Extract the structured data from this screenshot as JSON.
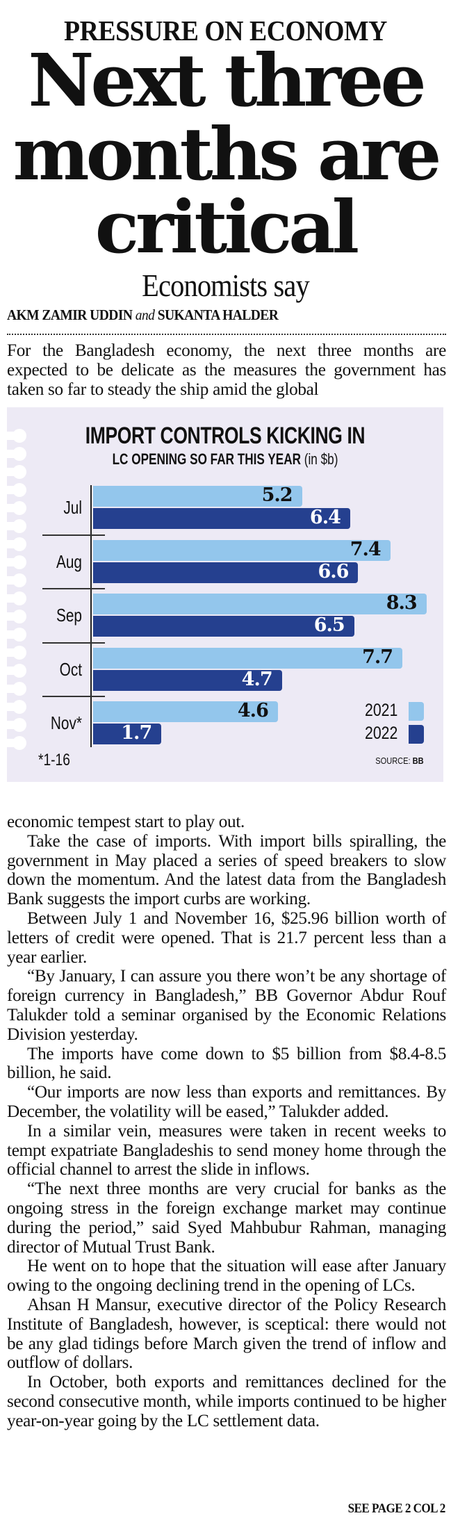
{
  "article": {
    "kicker": "PRESSURE ON ECONOMY",
    "headline_lines": [
      "Next three",
      "months are",
      "critical"
    ],
    "deck": "Economists say",
    "byline": {
      "author1": "AKM ZAMIR UDDIN",
      "conjunction": "and",
      "author2": "SUKANTA HALDER"
    },
    "intro": "For the Bangladesh economy, the next three months are expected to be delicate as the measures the government has taken so far to steady the ship amid the global",
    "body": [
      "economic tempest start to play out.",
      "Take the case of imports. With import bills spiralling, the government in May placed a series of speed breakers to slow down the momentum. And the latest data from the Bangladesh Bank suggests the import curbs are working.",
      "Between July 1 and November 16, $25.96 billion worth of letters of credit were opened. That is 21.7 percent less than a year earlier.",
      "“By January, I can assure you there won’t be any shortage of foreign currency in Bangladesh,” BB Governor Abdur Rouf Talukder told a seminar organised by the Economic Relations Division yesterday.",
      "The imports have come down to $5 billion from $8.4-8.5 billion, he said.",
      "“Our imports are now less than exports and remittances. By December, the volatility will be eased,” Talukder added.",
      "In a similar vein, measures were taken in recent weeks to tempt expatriate Bangladeshis to send money home through the official channel to arrest the slide in inflows.",
      "“The next three months are very crucial for banks as the ongoing stress in the foreign exchange market may continue during the period,” said Syed Mahbubur Rahman, managing director of Mutual Trust Bank.",
      "He went on to hope that the situation will ease after January owing to the ongoing declining trend in the opening of LCs.",
      "Ahsan H Mansur, executive director of the Policy Research Institute of Bangladesh, however, is sceptical: there would not be any glad tidings before March given the trend of inflow and outflow of dollars.",
      "In October, both exports and remittances declined for the second consecutive month, while imports continued to be higher year-on-year going by the LC settlement data."
    ],
    "jump_line": "SEE PAGE 2 COL 2"
  },
  "colors": {
    "series_2021": "#93c6ec",
    "series_2022": "#25408f",
    "chart_background": "#edeaf5"
  },
  "chart_data": {
    "type": "bar",
    "orientation": "horizontal",
    "title": "IMPORT CONTROLS KICKING IN",
    "subtitle_bold": "LC OPENING SO FAR THIS YEAR",
    "subtitle_unit": "(in $b)",
    "categories": [
      "Jul",
      "Aug",
      "Sep",
      "Oct",
      "Nov*"
    ],
    "series": [
      {
        "name": "2021",
        "values": [
          5.2,
          7.4,
          8.3,
          7.7,
          4.6
        ]
      },
      {
        "name": "2022",
        "values": [
          6.4,
          6.6,
          6.5,
          4.7,
          1.7
        ]
      }
    ],
    "value_labels": {
      "2021": [
        "5.2",
        "7.4",
        "8.3",
        "7.7",
        "4.6"
      ],
      "2022": [
        "6.4",
        "6.6",
        "6.5",
        "4.7",
        "1.7"
      ]
    },
    "footnote": "*1-16",
    "source_label": "SOURCE:",
    "source": "BB",
    "legend": [
      "2021",
      "2022"
    ],
    "legend_position": "bottom-right",
    "xlim": [
      0,
      8.7
    ],
    "grid": false
  }
}
